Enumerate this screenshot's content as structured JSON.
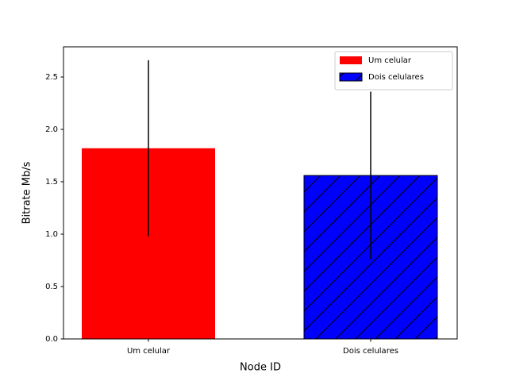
{
  "chart_data": {
    "type": "bar",
    "categories": [
      "Um celular",
      "Dois celulares"
    ],
    "series": [
      {
        "name": "Um celular",
        "color": "#ff0000",
        "hatch": null,
        "values": [
          1.82,
          null
        ],
        "errors": [
          0.84,
          null
        ]
      },
      {
        "name": "Dois celulares",
        "color": "#0000ff",
        "hatch": "/",
        "values": [
          null,
          1.56
        ],
        "errors": [
          null,
          0.8
        ]
      }
    ],
    "xlabel": "Node ID",
    "ylabel": "Bitrate Mb/s",
    "ylim": [
      0,
      2.788
    ],
    "yticks": [
      {
        "value": 0,
        "label": "0.0"
      },
      {
        "value": 0.5,
        "label": "0.5"
      },
      {
        "value": 1,
        "label": "1.0"
      },
      {
        "value": 1.5,
        "label": "1.5"
      },
      {
        "value": 2,
        "label": "2.0"
      },
      {
        "value": 2.5,
        "label": "2.5"
      }
    ],
    "legend": "upper right",
    "grid": false
  }
}
